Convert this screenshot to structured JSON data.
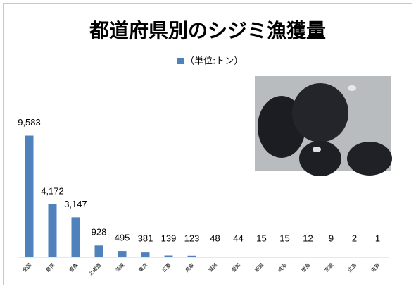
{
  "chart_data": {
    "type": "bar",
    "title": "都道府県別のシジミ漁獲量",
    "legend": "（単位:トン）",
    "categories": [
      "全国",
      "島根",
      "青森",
      "北海道",
      "茨城",
      "東京",
      "三重",
      "鳥取",
      "福岡",
      "愛知",
      "新潟",
      "岐阜",
      "徳島",
      "宮城",
      "広島",
      "佐賀"
    ],
    "values": [
      9583,
      4172,
      3147,
      928,
      495,
      381,
      139,
      123,
      48,
      44,
      15,
      15,
      12,
      9,
      2,
      1
    ],
    "value_labels": [
      "9,583",
      "4,172",
      "3,147",
      "928",
      "495",
      "381",
      "139",
      "123",
      "48",
      "44",
      "15",
      "15",
      "12",
      "9",
      "2",
      "1"
    ],
    "color": "#4f81bd",
    "ylim": [
      0,
      10000
    ]
  }
}
